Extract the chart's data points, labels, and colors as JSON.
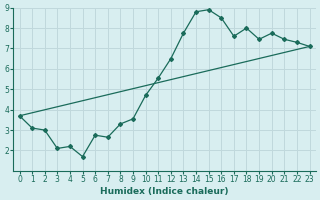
{
  "xlabel": "Humidex (Indice chaleur)",
  "ylabel": "",
  "bg_color": "#d8eef0",
  "grid_color": "#c0d8dc",
  "line_color": "#1a6b5a",
  "x_data": [
    0,
    1,
    2,
    3,
    4,
    5,
    6,
    7,
    8,
    9,
    10,
    11,
    12,
    13,
    14,
    15,
    16,
    17,
    18,
    19,
    20,
    21,
    22,
    23
  ],
  "y_zigzag": [
    3.7,
    3.1,
    3.0,
    2.1,
    2.2,
    1.7,
    2.75,
    2.65,
    3.3,
    3.55,
    4.7,
    5.55,
    6.5,
    7.75,
    8.8,
    8.9,
    8.5,
    7.6,
    8.0,
    7.45,
    7.75,
    7.45,
    7.3,
    7.1
  ],
  "y_linear_start": 3.7,
  "y_linear_end": 7.1,
  "ylim": [
    1,
    9
  ],
  "xlim": [
    -0.5,
    23.5
  ],
  "yticks": [
    2,
    3,
    4,
    5,
    6,
    7,
    8,
    9
  ],
  "xticks": [
    0,
    1,
    2,
    3,
    4,
    5,
    6,
    7,
    8,
    9,
    10,
    11,
    12,
    13,
    14,
    15,
    16,
    17,
    18,
    19,
    20,
    21,
    22,
    23
  ],
  "tick_fontsize": 5.5,
  "xlabel_fontsize": 6.5
}
